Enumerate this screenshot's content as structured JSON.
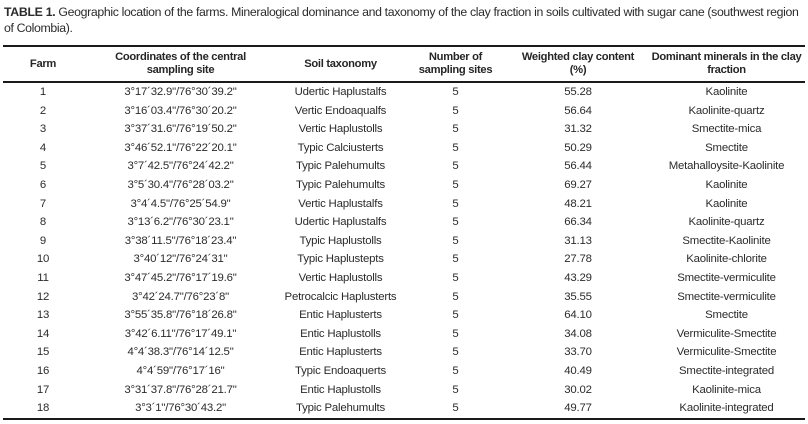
{
  "title": {
    "label": "TABLE 1.",
    "text": " Geographic location of the farms. Mineralogical dominance and taxonomy of the clay fraction in soils cultivated with sugar cane (southwest region of Colombia)."
  },
  "colors": {
    "background": "#ffffff",
    "text": "#2b2b2b",
    "rule": "#1a1a1a"
  },
  "table": {
    "columns": [
      "Farm",
      "Coordinates of the central\nsampling site",
      "Soil taxonomy",
      "Number of\nsampling sites",
      "Weighted clay content\n(%)",
      "Dominant minerals in the clay\nfraction"
    ],
    "rows": [
      [
        "1",
        "3°17´32.9\"/76°30´39.2\"",
        "Udertic Haplustalfs",
        "5",
        "55.28",
        "Kaolinite"
      ],
      [
        "2",
        "3°16´03.4\"/76°30´20.2\"",
        "Vertic Endoaqualfs",
        "5",
        "56.64",
        "Kaolinite-quartz"
      ],
      [
        "3",
        "3°37´31.6\"/76°19´50.2\"",
        "Vertic Haplustolls",
        "5",
        "31.32",
        "Smectite-mica"
      ],
      [
        "4",
        "3°46´52.1\"/76°22´20.1\"",
        "Typic Calciusterts",
        "5",
        "50.29",
        "Smectite"
      ],
      [
        "5",
        "3°7´42.5\"/76°24´42.2\"",
        "Typic Palehumults",
        "5",
        "56.44",
        "Metahalloysite-Kaolinite"
      ],
      [
        "6",
        "3°5´30.4\"/76°28´03.2\"",
        "Typic Palehumults",
        "5",
        "69.27",
        "Kaolinite"
      ],
      [
        "7",
        "3°4´4.5\"/76°25´54.9\"",
        "Vertic Haplustalfs",
        "5",
        "48.21",
        "Kaolinite"
      ],
      [
        "8",
        "3°13´6.2\"/76°30´23.1\"",
        "Udertic Haplustalfs",
        "5",
        "66.34",
        "Kaolinite-quartz"
      ],
      [
        "9",
        "3°38´11.5\"/76°18´23.4\"",
        "Typic Haplustolls",
        "5",
        "31.13",
        "Smectite-Kaolinite"
      ],
      [
        "10",
        "3°40´12\"/76°24´31\"",
        "Typic Haplustepts",
        "5",
        "27.78",
        "Kaolinite-chlorite"
      ],
      [
        "11",
        "3°47´45.2\"/76°17´19.6\"",
        "Vertic Haplustolls",
        "5",
        "43.29",
        "Smectite-vermiculite"
      ],
      [
        "12",
        "3°42´24.7\"/76°23´8\"",
        "Petrocalcic Haplusterts",
        "5",
        "35.55",
        "Smectite-vermiculite"
      ],
      [
        "13",
        "3°55´35.8\"/76°18´26.8\"",
        "Entic Haplusterts",
        "5",
        "64.10",
        "Smectite"
      ],
      [
        "14",
        "3°42´6.11\"/76°17´49.1\"",
        "Entic Haplustolls",
        "5",
        "34.08",
        "Vermiculite-Smectite"
      ],
      [
        "15",
        "4°4´38.3\"/76°14´12.5\"",
        "Entic Haplusterts",
        "5",
        "33.70",
        "Vermiculite-Smectite"
      ],
      [
        "16",
        "4°4´59\"/76°17´16\"",
        "Typic Endoaquerts",
        "5",
        "40.49",
        "Smectite-integrated"
      ],
      [
        "17",
        "3°31´37.8\"/76°28´21.7\"",
        "Entic Haplustolls",
        "5",
        "30.02",
        "Kaolinite-mica"
      ],
      [
        "18",
        "3°3´1\"/76°30´43.2\"",
        "Typic Palehumults",
        "5",
        "49.77",
        "Kaolinite-integrated"
      ]
    ]
  },
  "cell_names": [
    "cell-farm",
    "cell-coordinates",
    "cell-soil-taxonomy",
    "cell-sampling-sites",
    "cell-clay-content",
    "cell-dominant-minerals"
  ]
}
